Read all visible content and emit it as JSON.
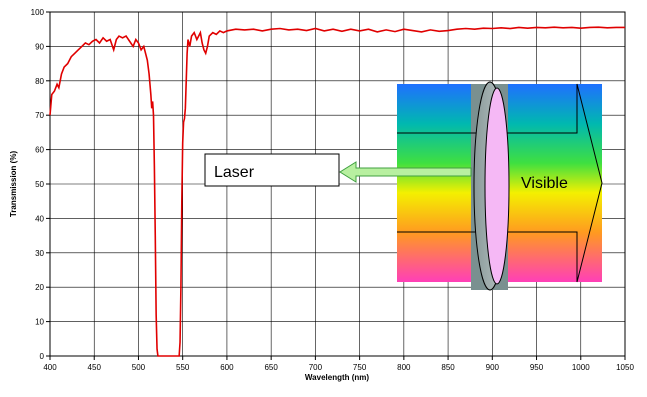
{
  "chart_data": {
    "type": "line",
    "title": "",
    "xlabel": "Wavelength (nm)",
    "ylabel": "Transmission (%)",
    "xlim": [
      400,
      1050
    ],
    "ylim": [
      0,
      100
    ],
    "x_ticks": [
      400,
      450,
      500,
      550,
      600,
      650,
      700,
      750,
      800,
      850,
      900,
      950,
      1000,
      1050
    ],
    "y_ticks": [
      0,
      10,
      20,
      30,
      40,
      50,
      60,
      70,
      80,
      90,
      100
    ],
    "x_tick_labels": [
      "400",
      "450",
      "500",
      "550",
      "600",
      "650",
      "700",
      "750",
      "800",
      "850",
      "900",
      "950",
      "1000",
      "1050"
    ],
    "y_tick_labels": [
      "0",
      "10",
      "20",
      "30",
      "40",
      "50",
      "60",
      "70",
      "80",
      "90",
      "100"
    ],
    "grid": true,
    "legend": "none",
    "series": [
      {
        "color": "#e00000",
        "points": [
          [
            400,
            70
          ],
          [
            402,
            76
          ],
          [
            405,
            77
          ],
          [
            408,
            79
          ],
          [
            410,
            78
          ],
          [
            413,
            82
          ],
          [
            416,
            84
          ],
          [
            420,
            85
          ],
          [
            424,
            87
          ],
          [
            428,
            88
          ],
          [
            432,
            89
          ],
          [
            436,
            90
          ],
          [
            440,
            91
          ],
          [
            444,
            90.5
          ],
          [
            448,
            91.5
          ],
          [
            452,
            92
          ],
          [
            456,
            91
          ],
          [
            460,
            92.5
          ],
          [
            464,
            91.5
          ],
          [
            468,
            92
          ],
          [
            472,
            89
          ],
          [
            475,
            92
          ],
          [
            478,
            93
          ],
          [
            482,
            92.5
          ],
          [
            486,
            93
          ],
          [
            490,
            91.5
          ],
          [
            494,
            90
          ],
          [
            497,
            92
          ],
          [
            500,
            91
          ],
          [
            503,
            89
          ],
          [
            506,
            90
          ],
          [
            508,
            88
          ],
          [
            510,
            86
          ],
          [
            512,
            82
          ],
          [
            514,
            76
          ],
          [
            515,
            72
          ],
          [
            516,
            74
          ],
          [
            517,
            70
          ],
          [
            518,
            55
          ],
          [
            519,
            35
          ],
          [
            520,
            12
          ],
          [
            521,
            2
          ],
          [
            522,
            0
          ],
          [
            530,
            0
          ],
          [
            540,
            0
          ],
          [
            546,
            0
          ],
          [
            547,
            4
          ],
          [
            548,
            20
          ],
          [
            549,
            45
          ],
          [
            550,
            62
          ],
          [
            551,
            68
          ],
          [
            552,
            69
          ],
          [
            553,
            72
          ],
          [
            554,
            80
          ],
          [
            555,
            88
          ],
          [
            556,
            92
          ],
          [
            558,
            90
          ],
          [
            560,
            93
          ],
          [
            563,
            94
          ],
          [
            566,
            92
          ],
          [
            568,
            93
          ],
          [
            570,
            94
          ],
          [
            572,
            91
          ],
          [
            574,
            89
          ],
          [
            576,
            88
          ],
          [
            578,
            90
          ],
          [
            580,
            93
          ],
          [
            584,
            94
          ],
          [
            588,
            93.5
          ],
          [
            592,
            94.5
          ],
          [
            596,
            94
          ],
          [
            600,
            94.5
          ],
          [
            610,
            95
          ],
          [
            620,
            94.8
          ],
          [
            630,
            95
          ],
          [
            640,
            94.5
          ],
          [
            650,
            95
          ],
          [
            660,
            95.2
          ],
          [
            670,
            94.8
          ],
          [
            680,
            95
          ],
          [
            690,
            94.6
          ],
          [
            700,
            95.2
          ],
          [
            710,
            94.5
          ],
          [
            720,
            95
          ],
          [
            730,
            94.4
          ],
          [
            740,
            95
          ],
          [
            750,
            94.5
          ],
          [
            760,
            95
          ],
          [
            770,
            94.2
          ],
          [
            780,
            94.8
          ],
          [
            790,
            94.3
          ],
          [
            800,
            95
          ],
          [
            810,
            94.6
          ],
          [
            820,
            94.2
          ],
          [
            830,
            94.8
          ],
          [
            840,
            94.4
          ],
          [
            850,
            94.6
          ],
          [
            860,
            95
          ],
          [
            870,
            95.2
          ],
          [
            880,
            95
          ],
          [
            890,
            95.3
          ],
          [
            900,
            95.2
          ],
          [
            910,
            95.4
          ],
          [
            920,
            95.2
          ],
          [
            930,
            95.5
          ],
          [
            940,
            95.3
          ],
          [
            950,
            95.5
          ],
          [
            960,
            95.4
          ],
          [
            970,
            95.6
          ],
          [
            980,
            95.4
          ],
          [
            990,
            95.5
          ],
          [
            1000,
            95.3
          ],
          [
            1010,
            95.5
          ],
          [
            1020,
            95.6
          ],
          [
            1030,
            95.4
          ],
          [
            1040,
            95.5
          ],
          [
            1050,
            95.5
          ]
        ]
      }
    ],
    "annotations": [
      {
        "label": "Laser",
        "arrow": "left"
      },
      {
        "label": "Visible",
        "arrow": "right"
      }
    ]
  }
}
